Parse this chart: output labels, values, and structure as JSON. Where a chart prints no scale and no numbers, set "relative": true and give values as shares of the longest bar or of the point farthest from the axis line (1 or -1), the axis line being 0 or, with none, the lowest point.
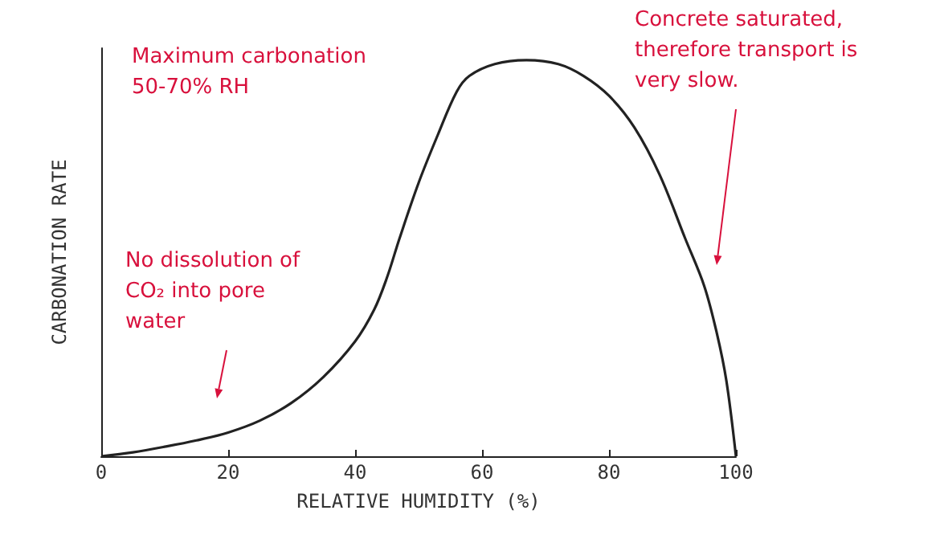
{
  "chart_data": {
    "type": "line",
    "xlabel": "RELATIVE HUMIDITY (%)",
    "ylabel": "CARBONATION RATE",
    "relative": true,
    "xlim": [
      0,
      100
    ],
    "xticks": [
      0,
      20,
      40,
      60,
      80,
      100
    ],
    "grid": false,
    "marker": "none",
    "line_style": "solid",
    "x": [
      0,
      5,
      10,
      15,
      20,
      25,
      30,
      35,
      40,
      43,
      45,
      47,
      50,
      53,
      56,
      58,
      62,
      67,
      72,
      76,
      80,
      84,
      88,
      92,
      95,
      97,
      98.5,
      100
    ],
    "series": [
      {
        "color": "#222222",
        "values": [
          0,
          0.01,
          0.024,
          0.04,
          0.06,
          0.09,
          0.135,
          0.2,
          0.29,
          0.37,
          0.45,
          0.55,
          0.69,
          0.81,
          0.92,
          0.96,
          0.99,
          1,
          0.99,
          0.96,
          0.91,
          0.83,
          0.71,
          0.55,
          0.43,
          0.31,
          0.19,
          0
        ]
      }
    ],
    "annotations": [
      "Maximum carbonation\n50-70% RH",
      "No dissolution of\nCO₂ into pore\nwater",
      "Concrete saturated,\ntherefore transport is\nvery slow."
    ]
  }
}
